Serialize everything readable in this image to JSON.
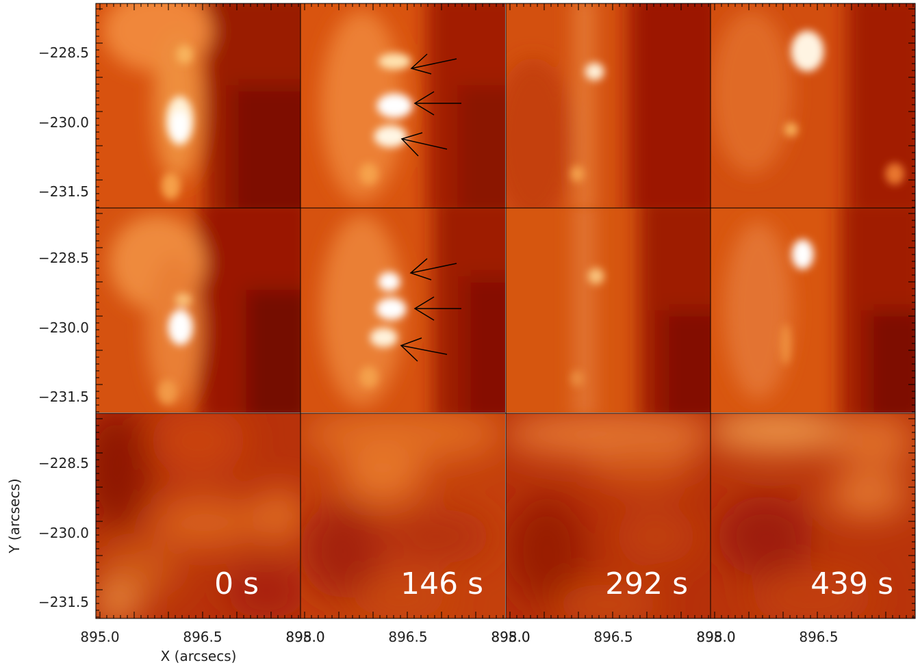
{
  "figure": {
    "x_axis_label": "X (arcsecs)",
    "y_axis_label": "Y (arcsecs)",
    "x_tick_labels": [
      "895.0",
      "896.5",
      "898.0"
    ],
    "y_tick_labels": [
      "−228.5",
      "−230.0",
      "−231.5"
    ],
    "time_labels": [
      "0 s",
      "146 s",
      "292 s",
      "439 s"
    ],
    "rows": 3,
    "columns": 4,
    "colormap": "red-orange-white (solar)",
    "colors": {
      "dark": "#8a1204",
      "mid": "#d8500e",
      "bright": "#f5ad55",
      "white": "#ffffff",
      "arrow": "#000000"
    },
    "annotations": "three black arrows point at bright kernels in the 146 s panels of rows 1 and 2"
  }
}
